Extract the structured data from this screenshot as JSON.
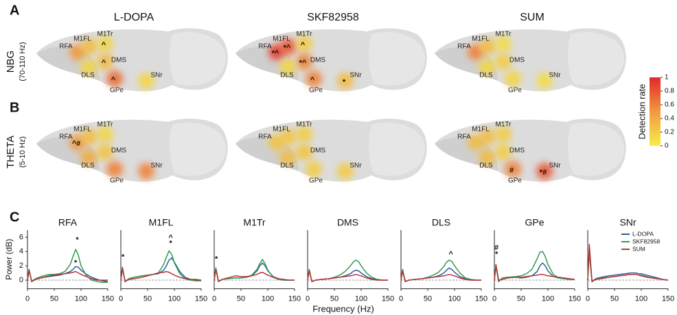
{
  "panel_labels": [
    "A",
    "B",
    "C"
  ],
  "brain": {
    "columns": [
      "L-DOPA",
      "SKF82958",
      "SUM"
    ],
    "rows": [
      {
        "label": "NBG",
        "sublabel": "(70-110 Hz)"
      },
      {
        "label": "THETA",
        "sublabel": "(5-10 Hz)"
      }
    ],
    "regions": [
      "RFA",
      "M1FL",
      "M1Tr",
      "DMS",
      "DLS",
      "GPe",
      "SNr"
    ],
    "rates": [
      [
        [
          0.5,
          0.3,
          0.15,
          0.3,
          0.15,
          0.7,
          0.15
        ],
        [
          0.9,
          0.8,
          0.2,
          0.6,
          0.15,
          0.6,
          0.3
        ],
        [
          0.6,
          0.3,
          0.1,
          0.2,
          0.15,
          0.15,
          0.1
        ]
      ],
      [
        [
          0.5,
          0.3,
          0.15,
          0.25,
          0.4,
          0.6,
          0.6
        ],
        [
          0.25,
          0.25,
          0.2,
          0.25,
          0.3,
          0.2,
          0.2
        ],
        [
          0.3,
          0.3,
          0.2,
          0.2,
          0.3,
          0.6,
          0.8
        ]
      ]
    ],
    "markers": [
      [
        [
          null,
          null,
          "^",
          "^",
          null,
          "^",
          null
        ],
        [
          "*^",
          "*^",
          "^",
          "*^",
          null,
          "^",
          "*"
        ],
        [
          null,
          null,
          null,
          null,
          null,
          null,
          null
        ]
      ],
      [
        [
          "^#",
          null,
          null,
          null,
          null,
          null,
          null
        ],
        [
          null,
          null,
          null,
          null,
          null,
          null,
          null
        ],
        [
          null,
          null,
          null,
          null,
          null,
          "#",
          "*#"
        ]
      ]
    ],
    "colorbar": {
      "title": "Detection rate",
      "lim": [
        0,
        1
      ],
      "ticks": [
        0,
        0.2,
        0.4,
        0.6,
        0.8,
        1
      ],
      "colors": [
        "#f4ee48",
        "#f19a3e",
        "#e3262a"
      ]
    }
  },
  "chart_data": [
    {
      "type": "line",
      "title": "RFA",
      "xlabel": "Frequency (Hz)",
      "ylabel": "Power (dB)",
      "xlim": [
        0,
        150
      ],
      "xticks": [
        0,
        50,
        100,
        150
      ],
      "ylim": [
        -1.2,
        7
      ],
      "yticks": [
        0,
        2,
        4,
        6
      ],
      "zero_line": true,
      "x": [
        0,
        3,
        8,
        15,
        25,
        40,
        50,
        60,
        70,
        80,
        85,
        90,
        95,
        100,
        110,
        120,
        130,
        140,
        150
      ],
      "series": [
        {
          "name": "L-DOPA",
          "color": "#2b5c9c",
          "values": [
            0,
            1.5,
            -0.2,
            0.1,
            0.3,
            0.5,
            0.6,
            0.7,
            0.9,
            1.2,
            1.5,
            1.9,
            1.8,
            1.4,
            0.8,
            0.4,
            0.1,
            -0.1,
            -0.2
          ]
        },
        {
          "name": "SKF82958",
          "color": "#2f9a4e",
          "values": [
            0,
            1.5,
            -0.2,
            0.2,
            0.5,
            0.8,
            0.8,
            0.9,
            1.2,
            2.2,
            3.3,
            4.3,
            3.5,
            2.0,
            0.6,
            0.0,
            -0.2,
            -0.3,
            -0.3
          ]
        },
        {
          "name": "SUM",
          "color": "#b83234",
          "values": [
            0,
            1.3,
            -0.2,
            0.1,
            0.3,
            0.6,
            0.7,
            0.8,
            0.9,
            1.0,
            1.1,
            1.2,
            1.0,
            0.8,
            0.5,
            0.2,
            0.0,
            0.0,
            0.0
          ]
        }
      ],
      "annotations": [
        {
          "text": "*",
          "color": "#2f9a4e",
          "x": 93,
          "y": 5.6
        },
        {
          "text": "*",
          "color": "#b83234",
          "x": 90,
          "y": 2.4
        }
      ]
    },
    {
      "type": "line",
      "title": "M1FL",
      "xlim": [
        0,
        150
      ],
      "xticks": [
        0,
        50,
        100,
        150
      ],
      "ylim": [
        -1.2,
        7
      ],
      "zero_line": true,
      "x": [
        0,
        3,
        8,
        15,
        25,
        40,
        50,
        60,
        70,
        80,
        85,
        90,
        95,
        100,
        110,
        120,
        130,
        140,
        150
      ],
      "series": [
        {
          "name": "L-DOPA",
          "color": "#2b5c9c",
          "values": [
            0,
            1.8,
            -0.2,
            0.2,
            0.4,
            0.6,
            0.7,
            0.8,
            0.9,
            1.4,
            2.0,
            2.8,
            3.1,
            2.5,
            1.2,
            0.4,
            0.1,
            0.0,
            0.0
          ]
        },
        {
          "name": "SKF82958",
          "color": "#2f9a4e",
          "values": [
            0,
            1.8,
            -0.2,
            0.2,
            0.4,
            0.6,
            0.7,
            0.8,
            1.0,
            2.2,
            3.2,
            4.1,
            3.6,
            2.4,
            0.9,
            0.2,
            0.0,
            -0.1,
            -0.1
          ]
        },
        {
          "name": "SUM",
          "color": "#b83234",
          "values": [
            0,
            1.6,
            -0.2,
            0.1,
            0.2,
            0.4,
            0.6,
            0.8,
            1.0,
            1.1,
            1.2,
            1.1,
            0.9,
            0.7,
            0.4,
            0.2,
            0.1,
            0.1,
            0.0
          ]
        }
      ],
      "annotations": [
        {
          "text": "*",
          "color": "#b83234",
          "x": 4,
          "y": 3.2
        },
        {
          "text": "^",
          "color": "#2f9a4e",
          "x": 93,
          "y": 5.9
        },
        {
          "text": "*",
          "color": "#2f9a4e",
          "x": 93,
          "y": 5.1
        }
      ]
    },
    {
      "type": "line",
      "title": "M1Tr",
      "xlim": [
        0,
        150
      ],
      "xticks": [
        0,
        50,
        100,
        150
      ],
      "ylim": [
        -1.2,
        7
      ],
      "zero_line": true,
      "x": [
        0,
        3,
        8,
        15,
        25,
        40,
        50,
        60,
        70,
        80,
        85,
        90,
        95,
        100,
        110,
        120,
        130,
        140,
        150
      ],
      "series": [
        {
          "name": "L-DOPA",
          "color": "#2b5c9c",
          "values": [
            0,
            1.7,
            -0.2,
            0.1,
            0.2,
            0.3,
            0.3,
            0.4,
            0.6,
            1.3,
            2.0,
            2.4,
            2.0,
            1.3,
            0.5,
            0.2,
            0.0,
            0.0,
            0.0
          ]
        },
        {
          "name": "SKF82958",
          "color": "#2f9a4e",
          "values": [
            0,
            1.7,
            -0.2,
            0.1,
            0.2,
            0.3,
            0.3,
            0.4,
            0.7,
            1.5,
            2.3,
            2.9,
            2.3,
            1.4,
            0.4,
            0.1,
            0.0,
            0.0,
            0.0
          ]
        },
        {
          "name": "SUM",
          "color": "#b83234",
          "values": [
            0,
            1.5,
            -0.2,
            0.1,
            0.3,
            0.6,
            0.5,
            0.5,
            0.6,
            0.8,
            1.0,
            1.1,
            0.9,
            0.7,
            0.4,
            0.2,
            0.1,
            0.0,
            0.0
          ]
        }
      ],
      "annotations": [
        {
          "text": "*",
          "color": "#b83234",
          "x": 4,
          "y": 2.9
        }
      ]
    },
    {
      "type": "line",
      "title": "DMS",
      "xlim": [
        0,
        150
      ],
      "xticks": [
        0,
        50,
        100,
        150
      ],
      "ylim": [
        -1.2,
        7
      ],
      "zero_line": true,
      "x": [
        0,
        3,
        8,
        15,
        25,
        40,
        50,
        60,
        70,
        80,
        85,
        90,
        95,
        100,
        110,
        120,
        130,
        140,
        150
      ],
      "series": [
        {
          "name": "L-DOPA",
          "color": "#2b5c9c",
          "values": [
            0,
            1.5,
            -0.2,
            0.0,
            0.1,
            0.2,
            0.3,
            0.4,
            0.6,
            0.9,
            1.2,
            1.4,
            1.3,
            1.0,
            0.5,
            0.2,
            0.1,
            0.0,
            0.0
          ]
        },
        {
          "name": "SKF82958",
          "color": "#2f9a4e",
          "values": [
            0,
            1.5,
            -0.2,
            0.0,
            0.1,
            0.2,
            0.4,
            0.7,
            1.2,
            2.0,
            2.5,
            2.8,
            2.6,
            2.0,
            1.0,
            0.4,
            0.1,
            0.0,
            0.0
          ]
        },
        {
          "name": "SUM",
          "color": "#b83234",
          "values": [
            0,
            1.3,
            -0.2,
            0.0,
            0.1,
            0.2,
            0.3,
            0.4,
            0.5,
            0.6,
            0.7,
            0.8,
            0.7,
            0.6,
            0.3,
            0.1,
            0.0,
            0.0,
            0.0
          ]
        }
      ]
    },
    {
      "type": "line",
      "title": "DLS",
      "xlim": [
        0,
        150
      ],
      "xticks": [
        0,
        50,
        100,
        150
      ],
      "ylim": [
        -1.2,
        7
      ],
      "zero_line": true,
      "x": [
        0,
        3,
        8,
        15,
        25,
        40,
        50,
        60,
        70,
        80,
        85,
        90,
        95,
        100,
        110,
        120,
        130,
        140,
        150
      ],
      "series": [
        {
          "name": "L-DOPA",
          "color": "#2b5c9c",
          "values": [
            0,
            1.5,
            -0.2,
            0.0,
            0.1,
            0.2,
            0.3,
            0.4,
            0.6,
            1.0,
            1.4,
            1.7,
            1.5,
            1.1,
            0.5,
            0.2,
            0.1,
            0.0,
            0.0
          ]
        },
        {
          "name": "SKF82958",
          "color": "#2f9a4e",
          "values": [
            0,
            1.5,
            -0.2,
            0.0,
            0.1,
            0.2,
            0.4,
            0.7,
            1.1,
            1.9,
            2.5,
            2.8,
            2.6,
            2.0,
            1.0,
            0.3,
            0.1,
            0.0,
            0.0
          ]
        },
        {
          "name": "SUM",
          "color": "#b83234",
          "values": [
            0,
            1.3,
            -0.2,
            0.0,
            0.1,
            0.2,
            0.3,
            0.4,
            0.5,
            0.6,
            0.7,
            0.8,
            0.7,
            0.6,
            0.3,
            0.1,
            0.0,
            0.0,
            0.0
          ]
        }
      ],
      "annotations": [
        {
          "text": "^",
          "color": "#2f9a4e",
          "x": 93,
          "y": 3.6
        }
      ]
    },
    {
      "type": "line",
      "title": "GPe",
      "xlim": [
        0,
        150
      ],
      "xticks": [
        0,
        50,
        100,
        150
      ],
      "ylim": [
        -1.2,
        7
      ],
      "zero_line": true,
      "x": [
        0,
        3,
        8,
        15,
        25,
        40,
        50,
        60,
        70,
        80,
        85,
        90,
        95,
        100,
        110,
        120,
        130,
        140,
        150
      ],
      "series": [
        {
          "name": "L-DOPA",
          "color": "#2b5c9c",
          "values": [
            0,
            2.0,
            -0.2,
            0.3,
            0.4,
            0.4,
            0.3,
            0.4,
            0.6,
            1.2,
            2.0,
            2.4,
            2.0,
            1.3,
            0.5,
            0.3,
            0.2,
            0.1,
            0.1
          ]
        },
        {
          "name": "SKF82958",
          "color": "#2f9a4e",
          "values": [
            0,
            2.0,
            -0.2,
            0.3,
            0.4,
            0.5,
            0.6,
            0.9,
            1.5,
            3.0,
            3.9,
            4.0,
            3.3,
            2.2,
            0.8,
            0.3,
            0.2,
            0.1,
            0.1
          ]
        },
        {
          "name": "SUM",
          "color": "#b83234",
          "values": [
            0,
            2.2,
            0.0,
            0.1,
            0.3,
            0.4,
            0.4,
            0.5,
            0.6,
            0.7,
            0.8,
            0.8,
            0.7,
            0.6,
            0.5,
            0.4,
            0.3,
            0.2,
            0.1
          ]
        }
      ],
      "annotations": [
        {
          "text": "#",
          "color": "#b83234",
          "x": 4,
          "y": 4.5
        },
        {
          "text": "*",
          "color": "#b83234",
          "x": 4,
          "y": 3.6
        }
      ]
    },
    {
      "type": "line",
      "title": "SNr",
      "xlim": [
        0,
        150
      ],
      "xticks": [
        0,
        50,
        100,
        150
      ],
      "ylim": [
        -1.2,
        7
      ],
      "zero_line": true,
      "legend": "upper right",
      "x": [
        0,
        3,
        8,
        15,
        25,
        40,
        50,
        60,
        70,
        80,
        85,
        90,
        95,
        100,
        110,
        120,
        130,
        140,
        150
      ],
      "series": [
        {
          "name": "L-DOPA",
          "color": "#2b5c9c",
          "values": [
            0,
            4.0,
            -0.2,
            0.2,
            0.4,
            0.6,
            0.7,
            0.8,
            0.9,
            1.0,
            1.0,
            1.0,
            0.9,
            0.9,
            0.7,
            0.5,
            0.3,
            0.1,
            0.0
          ]
        },
        {
          "name": "SKF82958",
          "color": "#2f9a4e",
          "values": [
            0,
            4.0,
            -0.2,
            0.1,
            0.3,
            0.4,
            0.5,
            0.6,
            0.7,
            0.8,
            0.8,
            0.8,
            0.7,
            0.7,
            0.5,
            0.3,
            0.2,
            0.1,
            0.0
          ]
        },
        {
          "name": "SUM",
          "color": "#b83234",
          "values": [
            0,
            5.0,
            -0.2,
            0.1,
            0.2,
            0.4,
            0.5,
            0.6,
            0.7,
            0.8,
            0.8,
            0.8,
            0.7,
            0.6,
            0.4,
            0.3,
            0.2,
            0.1,
            0.0
          ]
        }
      ]
    }
  ]
}
